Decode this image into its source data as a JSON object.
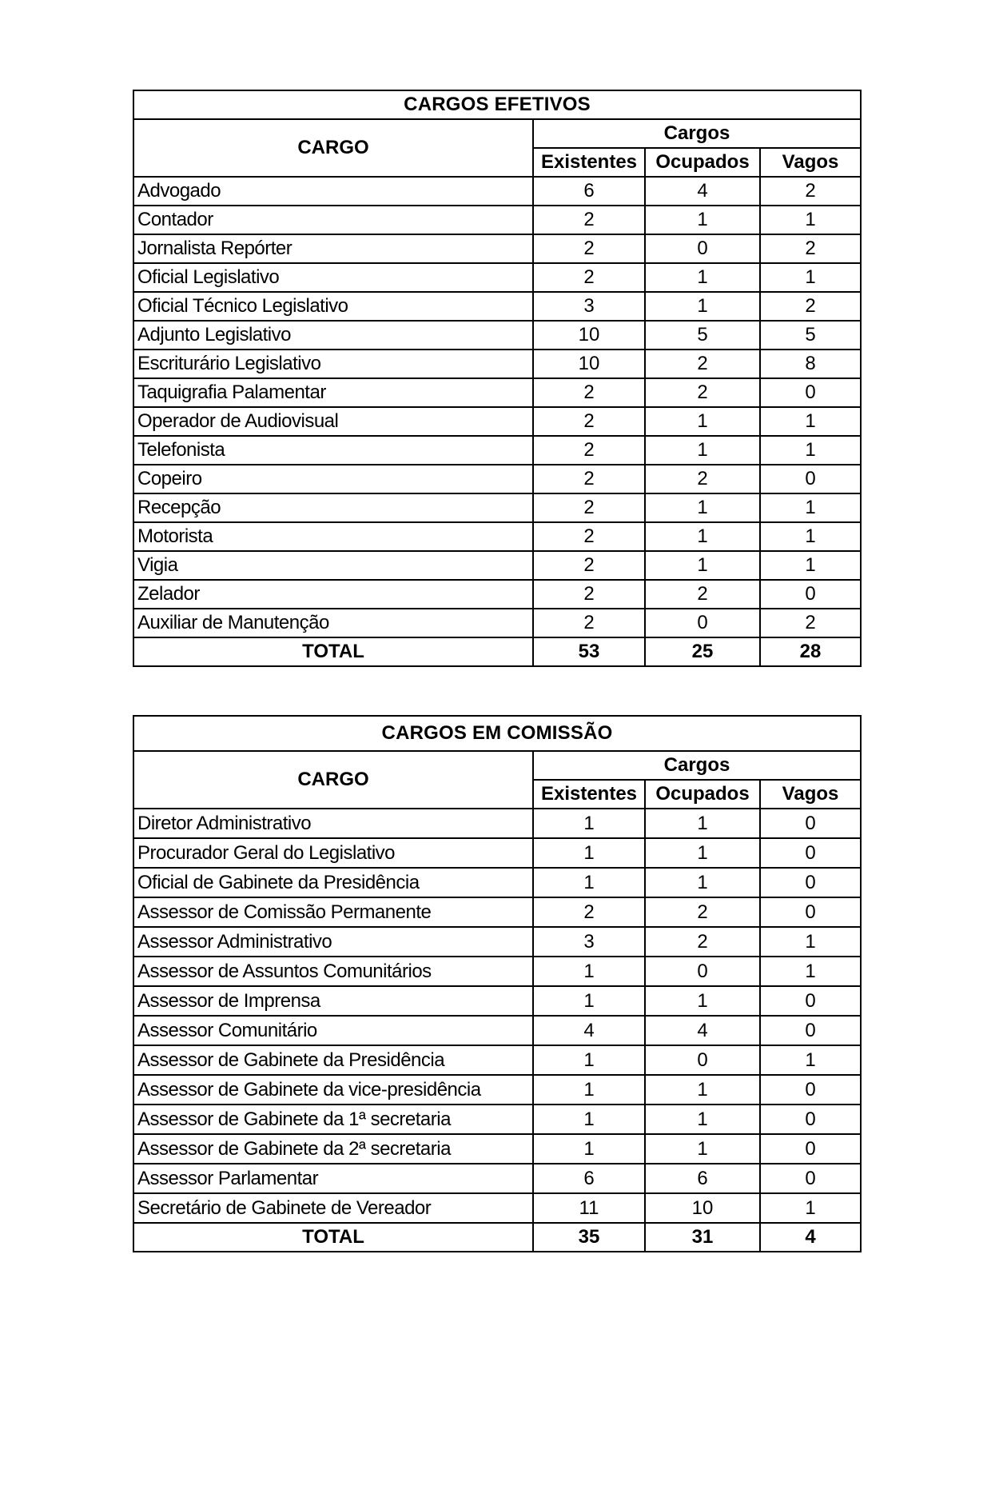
{
  "page": {
    "background_color": "#ffffff",
    "text_color": "#000000",
    "border_color": "#000000"
  },
  "tables": [
    {
      "title": "CARGOS EFETIVOS",
      "cargo_header": "CARGO",
      "group_header": "Cargos",
      "columns": [
        "Existentes",
        "Ocupados",
        "Vagos"
      ],
      "rows": [
        {
          "cargo": "Advogado",
          "existentes": "6",
          "ocupados": "4",
          "vagos": "2"
        },
        {
          "cargo": "Contador",
          "existentes": "2",
          "ocupados": "1",
          "vagos": "1"
        },
        {
          "cargo": "Jornalista Repórter",
          "existentes": "2",
          "ocupados": "0",
          "vagos": "2"
        },
        {
          "cargo": "Oficial Legislativo",
          "existentes": "2",
          "ocupados": "1",
          "vagos": "1"
        },
        {
          "cargo": "Oficial Técnico Legislativo",
          "existentes": "3",
          "ocupados": "1",
          "vagos": "2"
        },
        {
          "cargo": "Adjunto Legislativo",
          "existentes": "10",
          "ocupados": "5",
          "vagos": "5"
        },
        {
          "cargo": "Escriturário Legislativo",
          "existentes": "10",
          "ocupados": "2",
          "vagos": "8"
        },
        {
          "cargo": "Taquigrafia Palamentar",
          "existentes": "2",
          "ocupados": "2",
          "vagos": "0"
        },
        {
          "cargo": "Operador de Audiovisual",
          "existentes": "2",
          "ocupados": "1",
          "vagos": "1"
        },
        {
          "cargo": "Telefonista",
          "existentes": "2",
          "ocupados": "1",
          "vagos": "1"
        },
        {
          "cargo": "Copeiro",
          "existentes": "2",
          "ocupados": "2",
          "vagos": "0"
        },
        {
          "cargo": "Recepção",
          "existentes": "2",
          "ocupados": "1",
          "vagos": "1"
        },
        {
          "cargo": "Motorista",
          "existentes": "2",
          "ocupados": "1",
          "vagos": "1"
        },
        {
          "cargo": "Vigia",
          "existentes": "2",
          "ocupados": "1",
          "vagos": "1"
        },
        {
          "cargo": "Zelador",
          "existentes": "2",
          "ocupados": "2",
          "vagos": "0"
        },
        {
          "cargo": "Auxiliar de Manutenção",
          "existentes": "2",
          "ocupados": "0",
          "vagos": "2"
        }
      ],
      "total": {
        "label": "TOTAL",
        "existentes": "53",
        "ocupados": "25",
        "vagos": "28"
      }
    },
    {
      "title": "CARGOS EM COMISSÃO",
      "cargo_header": "CARGO",
      "group_header": "Cargos",
      "columns": [
        "Existentes",
        "Ocupados",
        "Vagos"
      ],
      "rows": [
        {
          "cargo": "Diretor Administrativo",
          "existentes": "1",
          "ocupados": "1",
          "vagos": "0"
        },
        {
          "cargo": "Procurador Geral do Legislativo",
          "existentes": "1",
          "ocupados": "1",
          "vagos": "0"
        },
        {
          "cargo": "Oficial de Gabinete da Presidência",
          "existentes": "1",
          "ocupados": "1",
          "vagos": "0"
        },
        {
          "cargo": "Assessor de Comissão Permanente",
          "existentes": "2",
          "ocupados": "2",
          "vagos": "0"
        },
        {
          "cargo": "Assessor Administrativo",
          "existentes": "3",
          "ocupados": "2",
          "vagos": "1"
        },
        {
          "cargo": "Assessor de Assuntos Comunitários",
          "existentes": "1",
          "ocupados": "0",
          "vagos": "1"
        },
        {
          "cargo": "Assessor de Imprensa",
          "existentes": "1",
          "ocupados": "1",
          "vagos": "0"
        },
        {
          "cargo": "Assessor Comunitário",
          "existentes": "4",
          "ocupados": "4",
          "vagos": "0"
        },
        {
          "cargo": "Assessor de Gabinete da Presidência",
          "existentes": "1",
          "ocupados": "0",
          "vagos": "1"
        },
        {
          "cargo": "Assessor de Gabinete da vice-presidência",
          "existentes": "1",
          "ocupados": "1",
          "vagos": "0"
        },
        {
          "cargo": "Assessor de Gabinete da 1ª secretaria",
          "existentes": "1",
          "ocupados": "1",
          "vagos": "0"
        },
        {
          "cargo": "Assessor de Gabinete da 2ª secretaria",
          "existentes": "1",
          "ocupados": "1",
          "vagos": "0"
        },
        {
          "cargo": "Assessor Parlamentar",
          "existentes": "6",
          "ocupados": "6",
          "vagos": "0"
        },
        {
          "cargo": "Secretário de Gabinete de Vereador",
          "existentes": "11",
          "ocupados": "10",
          "vagos": "1"
        }
      ],
      "total": {
        "label": "TOTAL",
        "existentes": "35",
        "ocupados": "31",
        "vagos": "4"
      }
    }
  ]
}
